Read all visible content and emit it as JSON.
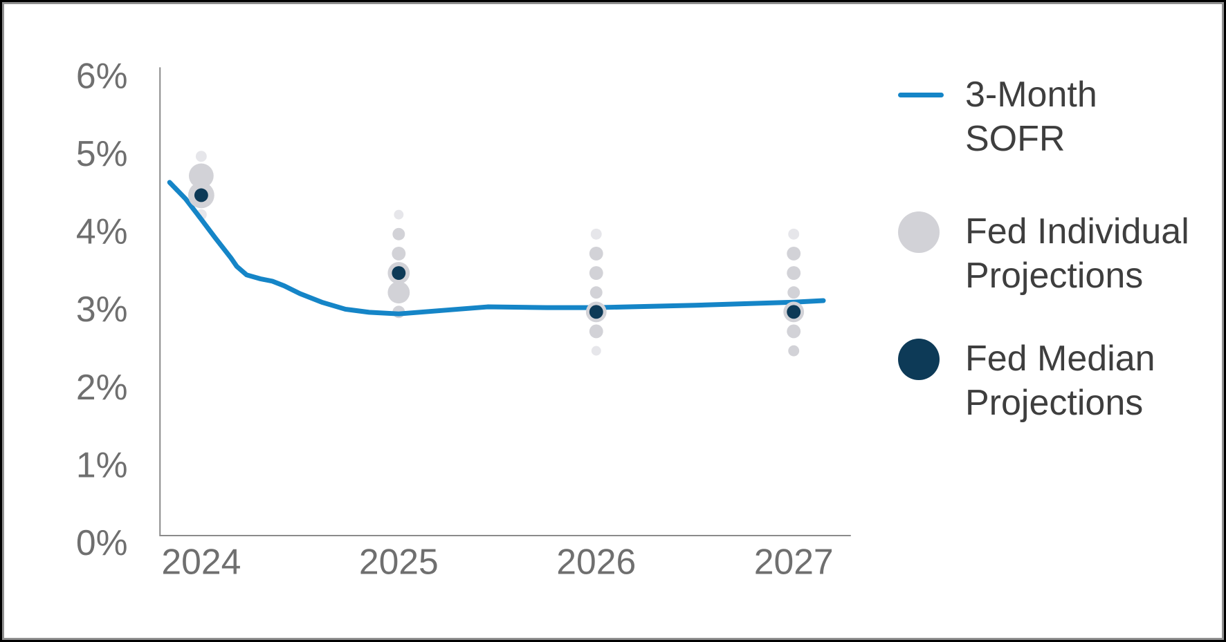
{
  "chart_data": {
    "type": "line",
    "title": "",
    "xlabel": "",
    "ylabel": "",
    "grid": false,
    "legend_position": "right",
    "x_tick_labels": [
      "2024",
      "2025",
      "2026",
      "2027"
    ],
    "x_tick_years": [
      2024,
      2025,
      2026,
      2027
    ],
    "y_tick_labels": [
      "0%",
      "1%",
      "2%",
      "3%",
      "4%",
      "5%",
      "6%"
    ],
    "y_tick_values": [
      0,
      1,
      2,
      3,
      4,
      5,
      6
    ],
    "ylim": [
      0,
      6
    ],
    "xlim": [
      2023.79,
      2027.35
    ],
    "axis_color": "#8a8a8a",
    "tick_label_color": "#6f6f6f",
    "series": [
      {
        "name": "3-Month SOFR",
        "type": "line",
        "color": "#1585c7",
        "points": [
          [
            2023.84,
            4.54
          ],
          [
            2023.92,
            4.33
          ],
          [
            2023.99,
            4.1
          ],
          [
            2024.07,
            3.83
          ],
          [
            2024.15,
            3.57
          ],
          [
            2024.18,
            3.46
          ],
          [
            2024.23,
            3.35
          ],
          [
            2024.3,
            3.3
          ],
          [
            2024.36,
            3.27
          ],
          [
            2024.42,
            3.21
          ],
          [
            2024.5,
            3.11
          ],
          [
            2024.61,
            3.0
          ],
          [
            2024.73,
            2.91
          ],
          [
            2024.85,
            2.87
          ],
          [
            2025.0,
            2.85
          ],
          [
            2025.2,
            2.89
          ],
          [
            2025.45,
            2.94
          ],
          [
            2025.75,
            2.93
          ],
          [
            2026.0,
            2.93
          ],
          [
            2026.5,
            2.96
          ],
          [
            2027.0,
            3.0
          ],
          [
            2027.15,
            3.02
          ]
        ]
      },
      {
        "name": "Fed Individual Projections",
        "type": "scatter",
        "color": "#d2d2d7",
        "light_color": "#e6e6ea",
        "groups": [
          {
            "year": 2024,
            "dots": [
              {
                "pct": 4.875,
                "r": 8,
                "light": true
              },
              {
                "pct": 4.625,
                "r": 18
              },
              {
                "pct": 4.125,
                "r": 8,
                "light": true
              }
            ]
          },
          {
            "year": 2025,
            "dots": [
              {
                "pct": 4.125,
                "r": 7,
                "light": true
              },
              {
                "pct": 3.875,
                "r": 9
              },
              {
                "pct": 3.625,
                "r": 10
              },
              {
                "pct": 3.125,
                "r": 16
              },
              {
                "pct": 2.875,
                "r": 9
              }
            ]
          },
          {
            "year": 2026,
            "dots": [
              {
                "pct": 3.875,
                "r": 8,
                "light": true
              },
              {
                "pct": 3.625,
                "r": 10
              },
              {
                "pct": 3.375,
                "r": 10
              },
              {
                "pct": 3.125,
                "r": 9
              },
              {
                "pct": 2.625,
                "r": 10
              },
              {
                "pct": 2.375,
                "r": 7,
                "light": true
              }
            ]
          },
          {
            "year": 2027,
            "dots": [
              {
                "pct": 3.875,
                "r": 8,
                "light": true
              },
              {
                "pct": 3.625,
                "r": 10
              },
              {
                "pct": 3.375,
                "r": 10
              },
              {
                "pct": 3.125,
                "r": 9
              },
              {
                "pct": 2.625,
                "r": 10
              },
              {
                "pct": 2.375,
                "r": 8
              }
            ]
          }
        ]
      },
      {
        "name": "Fed Median Projections",
        "type": "scatter",
        "color": "#0d3a57",
        "halo_color": "#d2d2d7",
        "medians": [
          {
            "year": 2024,
            "pct": 4.375,
            "r": 10,
            "halo_r": 19
          },
          {
            "year": 2025,
            "pct": 3.375,
            "r": 10,
            "halo_r": 16
          },
          {
            "year": 2026,
            "pct": 2.875,
            "r": 10,
            "halo_r": 15
          },
          {
            "year": 2027,
            "pct": 2.875,
            "r": 10,
            "halo_r": 15
          }
        ]
      }
    ]
  },
  "legend": {
    "text_color": "#3e3e3e",
    "items": [
      {
        "label": "3-Month SOFR",
        "lines": [
          "3-Month",
          "SOFR"
        ],
        "swatch": "line",
        "swatch_color": "#1585c7"
      },
      {
        "label": "Fed Individual Projections",
        "lines": [
          "Fed Individual",
          "Projections"
        ],
        "swatch": "circle",
        "swatch_color": "#d2d2d7"
      },
      {
        "label": "Fed Median Projections",
        "lines": [
          "Fed Median",
          "Projections"
        ],
        "swatch": "circle",
        "swatch_color": "#0d3a57"
      }
    ]
  }
}
